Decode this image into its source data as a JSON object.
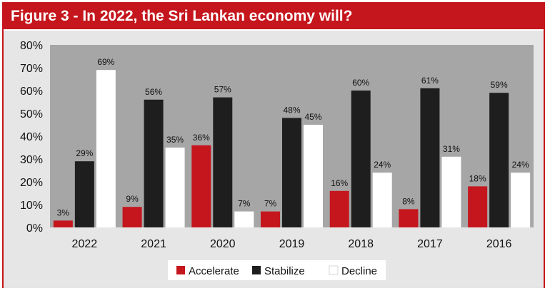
{
  "title": "Figure 3 - In 2022, the Sri Lankan economy will?",
  "chart_data": {
    "type": "bar",
    "categories": [
      "2022",
      "2021",
      "2020",
      "2019",
      "2018",
      "2017",
      "2016"
    ],
    "series": [
      {
        "name": "Accelerate",
        "values": [
          3,
          9,
          36,
          7,
          16,
          8,
          18
        ],
        "color": "#c5161d"
      },
      {
        "name": "Stabilize",
        "values": [
          29,
          56,
          57,
          48,
          60,
          61,
          59
        ],
        "color": "#1e1e1e"
      },
      {
        "name": "Decline",
        "values": [
          69,
          35,
          7,
          45,
          24,
          31,
          24
        ],
        "color": "#ffffff"
      }
    ],
    "yticks": [
      "0%",
      "10%",
      "20%",
      "30%",
      "40%",
      "50%",
      "60%",
      "70%",
      "80%"
    ],
    "ylim": [
      0,
      80
    ],
    "unit": "%",
    "grid": false,
    "legend_position": "bottom",
    "plot_background": "#a6a6a6"
  }
}
